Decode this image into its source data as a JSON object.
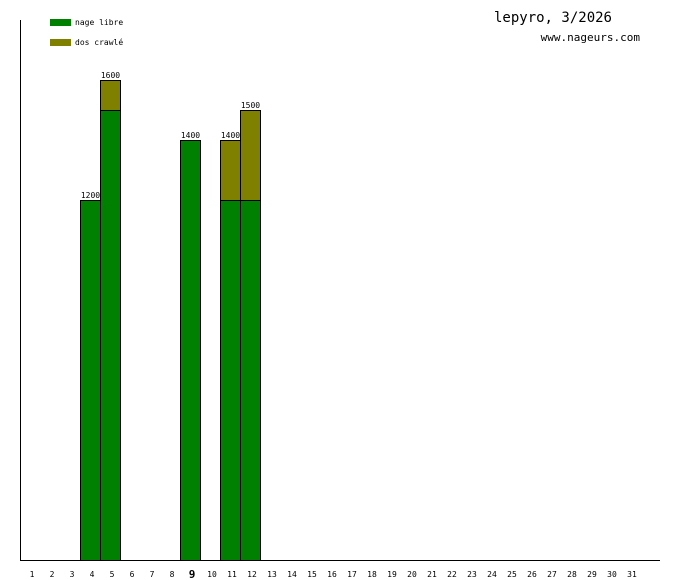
{
  "header": {
    "title": "lepyro, 3/2026",
    "site": "www.nageurs.com"
  },
  "colors": {
    "nage_libre": "#008000",
    "dos_crawle": "#808000",
    "axis": "#000000",
    "background": "#ffffff"
  },
  "chart_data": {
    "type": "bar",
    "stacked": true,
    "title": "lepyro, 3/2026",
    "xlabel": "",
    "ylabel": "",
    "categories": [
      "1",
      "2",
      "3",
      "4",
      "5",
      "6",
      "7",
      "8",
      "9",
      "10",
      "11",
      "12",
      "13",
      "14",
      "15",
      "16",
      "17",
      "18",
      "19",
      "20",
      "21",
      "22",
      "23",
      "24",
      "25",
      "26",
      "27",
      "28",
      "29",
      "30",
      "31"
    ],
    "highlight_category": "9",
    "ylim": [
      0,
      1800
    ],
    "grid": false,
    "legend_position": "top-left",
    "series": [
      {
        "name": "nage libre",
        "color": "#008000",
        "values": [
          0,
          0,
          0,
          1200,
          1500,
          0,
          0,
          0,
          1400,
          0,
          1200,
          1200,
          0,
          0,
          0,
          0,
          0,
          0,
          0,
          0,
          0,
          0,
          0,
          0,
          0,
          0,
          0,
          0,
          0,
          0,
          0
        ]
      },
      {
        "name": "dos crawlé",
        "color": "#808000",
        "values": [
          0,
          0,
          0,
          0,
          100,
          0,
          0,
          0,
          0,
          0,
          200,
          300,
          0,
          0,
          0,
          0,
          0,
          0,
          0,
          0,
          0,
          0,
          0,
          0,
          0,
          0,
          0,
          0,
          0,
          0,
          0
        ]
      }
    ],
    "totals": [
      0,
      0,
      0,
      1200,
      1600,
      0,
      0,
      0,
      1400,
      0,
      1400,
      1500,
      0,
      0,
      0,
      0,
      0,
      0,
      0,
      0,
      0,
      0,
      0,
      0,
      0,
      0,
      0,
      0,
      0,
      0,
      0
    ]
  }
}
